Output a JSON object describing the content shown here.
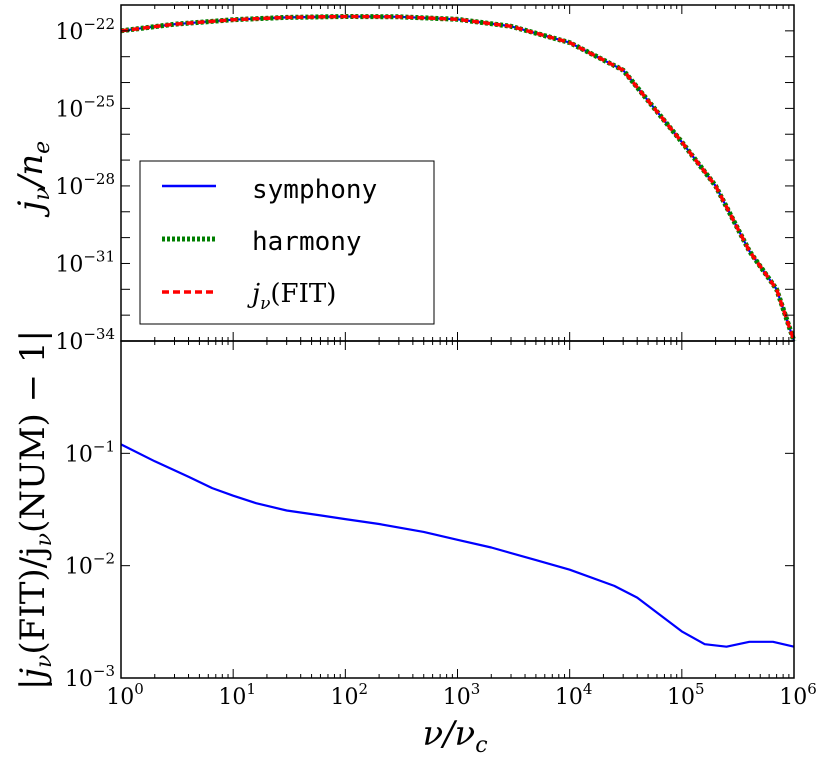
{
  "chart_data": [
    {
      "type": "line",
      "panel": "top",
      "ylabel": "j_ν/n_e",
      "xscale": "log",
      "yscale": "log",
      "xlim": [
        1,
        1000000
      ],
      "ylim": [
        1e-34,
        1e-21
      ],
      "ytick_labels": [
        "10^-22",
        "10^-25",
        "10^-28",
        "10^-31",
        "10^-34"
      ],
      "ytick_values": [
        1e-22,
        1e-25,
        1e-28,
        1e-31,
        1e-34
      ],
      "legend_position": "lower-left",
      "series": [
        {
          "name": "symphony",
          "color": "#0000ff",
          "style": "solid",
          "x": [
            1,
            3,
            10,
            30,
            100,
            300,
            1000,
            3000,
            10000,
            30000,
            100000,
            200000,
            400000,
            700000,
            1000000
          ],
          "y": [
            1e-22,
            1.8e-22,
            2.7e-22,
            3.3e-22,
            3.6e-22,
            3.5e-22,
            2.8e-22,
            1.5e-22,
            3.5e-23,
            3e-24,
            5e-27,
            1e-28,
            3e-31,
            1e-32,
            1e-34
          ]
        },
        {
          "name": "harmony",
          "color": "#007f00",
          "style": "dashdot",
          "x": [
            1,
            3,
            10,
            30,
            100,
            300,
            1000,
            3000,
            10000,
            30000,
            100000,
            200000,
            400000,
            700000,
            1000000
          ],
          "y": [
            1e-22,
            1.8e-22,
            2.7e-22,
            3.3e-22,
            3.6e-22,
            3.5e-22,
            2.8e-22,
            1.5e-22,
            3.5e-23,
            3e-24,
            5e-27,
            1e-28,
            3e-31,
            1e-32,
            1e-34
          ]
        },
        {
          "name": "j_ν(FIT)",
          "color": "#ff0000",
          "style": "dashed",
          "x": [
            1,
            3,
            10,
            30,
            100,
            300,
            1000,
            3000,
            10000,
            30000,
            100000,
            200000,
            400000,
            700000,
            1000000
          ],
          "y": [
            1e-22,
            1.8e-22,
            2.7e-22,
            3.3e-22,
            3.6e-22,
            3.5e-22,
            2.8e-22,
            1.5e-22,
            3.5e-23,
            3e-24,
            5e-27,
            1e-28,
            3e-31,
            1e-32,
            1e-34
          ]
        }
      ]
    },
    {
      "type": "line",
      "panel": "bottom",
      "ylabel": "|j_ν(FIT)/j_ν(NUM) − 1|",
      "xlabel": "ν/ν_c",
      "xscale": "log",
      "yscale": "log",
      "xlim": [
        1,
        1000000
      ],
      "ylim": [
        0.001,
        1
      ],
      "ytick_labels": [
        "10^-1",
        "10^-2",
        "10^-3"
      ],
      "ytick_values": [
        0.1,
        0.01,
        0.001
      ],
      "xtick_labels": [
        "10^0",
        "10^1",
        "10^2",
        "10^3",
        "10^4",
        "10^5",
        "10^6"
      ],
      "xtick_values": [
        1,
        10,
        100,
        1000,
        10000,
        100000,
        1000000
      ],
      "series": [
        {
          "color": "#0000ff",
          "style": "solid",
          "x": [
            1,
            2,
            4,
            6.5,
            10,
            16,
            30,
            60,
            100,
            200,
            500,
            1000,
            2000,
            5000,
            10000,
            25000,
            40000,
            65000,
            100000,
            160000,
            250000,
            400000,
            650000,
            1000000
          ],
          "y": [
            0.12,
            0.085,
            0.062,
            0.049,
            0.042,
            0.036,
            0.031,
            0.028,
            0.026,
            0.0235,
            0.02,
            0.017,
            0.0145,
            0.0112,
            0.0092,
            0.0066,
            0.0052,
            0.0036,
            0.0026,
            0.002,
            0.0019,
            0.0021,
            0.0021,
            0.0019
          ]
        }
      ]
    }
  ]
}
